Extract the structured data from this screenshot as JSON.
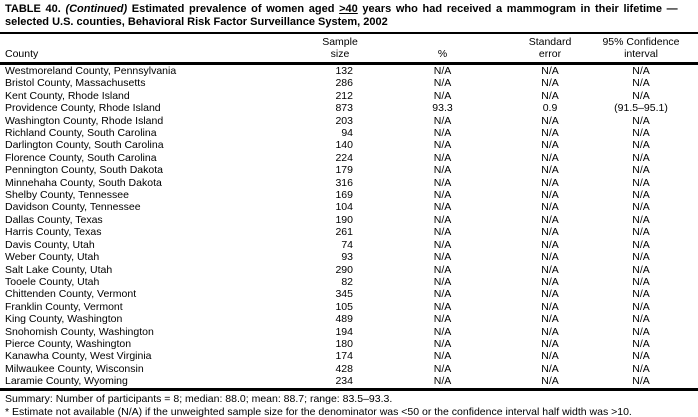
{
  "page": {
    "title": {
      "label": "TABLE 40.",
      "continued": " (Continued)",
      "part1": " Estimated prevalence of women aged ",
      "age_threshold": ">40",
      "part2": " years who had received a mammogram in their lifetime —",
      "line2": "selected U.S. counties, Behavioral Risk Factor Surveillance System, 2002"
    },
    "table": {
      "columns": [
        {
          "line1": "",
          "line2": "County"
        },
        {
          "line1": "Sample",
          "line2": "size"
        },
        {
          "line1": "",
          "line2": "%"
        },
        {
          "line1": "Standard",
          "line2": "error"
        },
        {
          "line1": "95% Confidence",
          "line2": "interval"
        }
      ],
      "rows": [
        [
          "Westmoreland County, Pennsylvania",
          "132",
          "N/A",
          "N/A",
          "N/A"
        ],
        [
          "Bristol County, Massachusetts",
          "286",
          "N/A",
          "N/A",
          "N/A"
        ],
        [
          "Kent County, Rhode Island",
          "212",
          "N/A",
          "N/A",
          "N/A"
        ],
        [
          "Providence County, Rhode Island",
          "873",
          "93.3",
          "0.9",
          "(91.5–95.1)"
        ],
        [
          "Washington County, Rhode Island",
          "203",
          "N/A",
          "N/A",
          "N/A"
        ],
        [
          "Richland County, South Carolina",
          "94",
          "N/A",
          "N/A",
          "N/A"
        ],
        [
          "Darlington County, South Carolina",
          "140",
          "N/A",
          "N/A",
          "N/A"
        ],
        [
          "Florence County, South Carolina",
          "224",
          "N/A",
          "N/A",
          "N/A"
        ],
        [
          "Pennington County, South Dakota",
          "179",
          "N/A",
          "N/A",
          "N/A"
        ],
        [
          "Minnehaha County, South Dakota",
          "316",
          "N/A",
          "N/A",
          "N/A"
        ],
        [
          "Shelby County, Tennessee",
          "169",
          "N/A",
          "N/A",
          "N/A"
        ],
        [
          "Davidson County, Tennessee",
          "104",
          "N/A",
          "N/A",
          "N/A"
        ],
        [
          "Dallas County, Texas",
          "190",
          "N/A",
          "N/A",
          "N/A"
        ],
        [
          "Harris County, Texas",
          "261",
          "N/A",
          "N/A",
          "N/A"
        ],
        [
          "Davis County, Utah",
          "74",
          "N/A",
          "N/A",
          "N/A"
        ],
        [
          "Weber County, Utah",
          "93",
          "N/A",
          "N/A",
          "N/A"
        ],
        [
          "Salt Lake County, Utah",
          "290",
          "N/A",
          "N/A",
          "N/A"
        ],
        [
          "Tooele County, Utah",
          "82",
          "N/A",
          "N/A",
          "N/A"
        ],
        [
          "Chittenden County, Vermont",
          "345",
          "N/A",
          "N/A",
          "N/A"
        ],
        [
          "Franklin County, Vermont",
          "105",
          "N/A",
          "N/A",
          "N/A"
        ],
        [
          "King County, Washington",
          "489",
          "N/A",
          "N/A",
          "N/A"
        ],
        [
          "Snohomish County, Washington",
          "194",
          "N/A",
          "N/A",
          "N/A"
        ],
        [
          "Pierce County, Washington",
          "180",
          "N/A",
          "N/A",
          "N/A"
        ],
        [
          "Kanawha County, West Virginia",
          "174",
          "N/A",
          "N/A",
          "N/A"
        ],
        [
          "Milwaukee County, Wisconsin",
          "428",
          "N/A",
          "N/A",
          "N/A"
        ],
        [
          "Laramie County, Wyoming",
          "234",
          "N/A",
          "N/A",
          "N/A"
        ]
      ]
    },
    "summary": "Summary: Number of participants = 8; median: 88.0; mean: 88.7; range: 83.5–93.3.",
    "footnote": "* Estimate not available (N/A) if the unweighted sample size for the denominator was <50 or the confidence interval half width was >10."
  }
}
